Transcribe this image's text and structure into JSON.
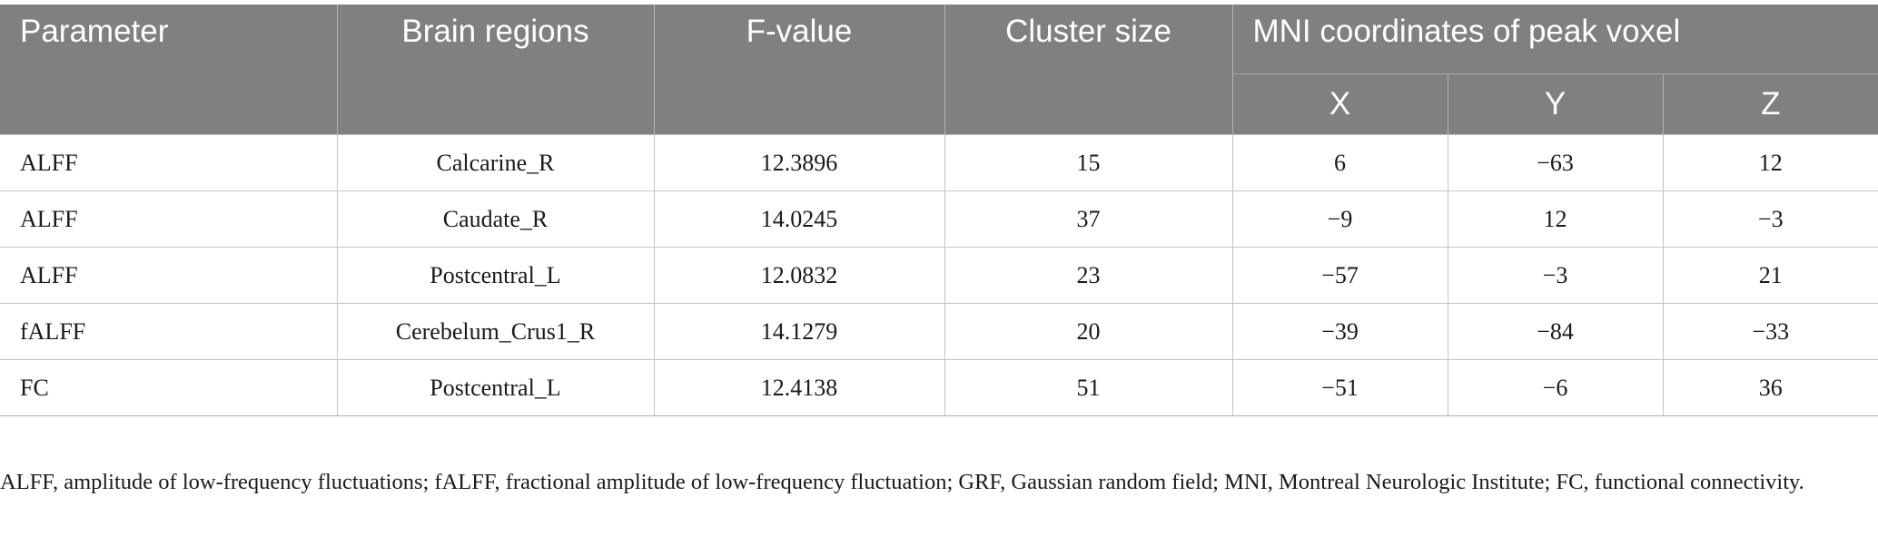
{
  "table": {
    "headers": {
      "parameter": "Parameter",
      "brain_regions": "Brain regions",
      "f_value": "F-value",
      "cluster_size": "Cluster size",
      "mni_group": "MNI coordinates of peak voxel",
      "x": "X",
      "y": "Y",
      "z": "Z"
    },
    "rows": [
      {
        "parameter": "ALFF",
        "region": "Calcarine_R",
        "f_value": "12.3896",
        "cluster_size": "15",
        "x": "6",
        "y": "−63",
        "z": "12"
      },
      {
        "parameter": "ALFF",
        "region": "Caudate_R",
        "f_value": "14.0245",
        "cluster_size": "37",
        "x": "−9",
        "y": "12",
        "z": "−3"
      },
      {
        "parameter": "ALFF",
        "region": "Postcentral_L",
        "f_value": "12.0832",
        "cluster_size": "23",
        "x": "−57",
        "y": "−3",
        "z": "21"
      },
      {
        "parameter": "fALFF",
        "region": "Cerebelum_Crus1_R",
        "f_value": "14.1279",
        "cluster_size": "20",
        "x": "−39",
        "y": "−84",
        "z": "−33"
      },
      {
        "parameter": "FC",
        "region": "Postcentral_L",
        "f_value": "12.4138",
        "cluster_size": "51",
        "x": "−51",
        "y": "−6",
        "z": "36"
      }
    ]
  },
  "footnote": "ALFF, amplitude of low-frequency fluctuations; fALFF, fractional amplitude of low-frequency fluctuation; GRF, Gaussian random field; MNI, Montreal Neurologic Institute; FC, functional connectivity."
}
